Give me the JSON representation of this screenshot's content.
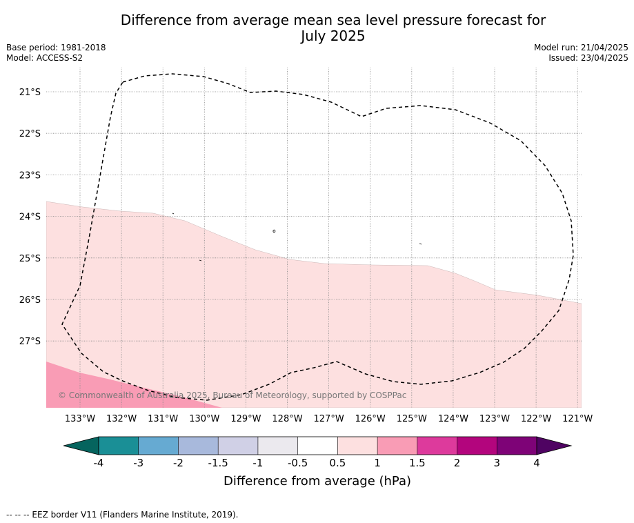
{
  "title_line1": "Difference from average mean sea level pressure forecast for",
  "title_line2": "July 2025",
  "base_period": "Base period: 1981-2018",
  "model": "Model: ACCESS-S2",
  "model_run": "Model run: 21/04/2025",
  "issued": "Issued: 23/04/2025",
  "copyright": "© Commonwealth of Australia 2025, Bureau of Meteorology, supported by COSPPac",
  "lat_labels": [
    "21°S",
    "22°S",
    "23°S",
    "24°S",
    "25°S",
    "26°S",
    "27°S"
  ],
  "lon_labels": [
    "133°W",
    "132°W",
    "131°W",
    "130°W",
    "129°W",
    "128°W",
    "127°W",
    "126°W",
    "125°W",
    "124°W",
    "123°W",
    "122°W",
    "121°W"
  ],
  "colorbar": {
    "ticks": [
      "-4",
      "-3",
      "-2",
      "-1.5",
      "-1",
      "-0.5",
      "0.5",
      "1",
      "1.5",
      "2",
      "3",
      "4"
    ],
    "colors": [
      "#1a8f96",
      "#66aad2",
      "#a8b9dc",
      "#d0d0e6",
      "#ebe9ee",
      "#ffffff",
      "#fde0e0",
      "#f99cb5",
      "#dd3a9c",
      "#b3057d",
      "#7e0377"
    ],
    "under_color": "#05645e",
    "over_color": "#4f0362",
    "label": "Difference from average (hPa)"
  },
  "map_colors": {
    "band_05_1": "#fde0e0",
    "band_1_15": "#f99cb5"
  },
  "footnote": "--  --  -- EEZ border V11 (Flanders Marine Institute, 2019)."
}
